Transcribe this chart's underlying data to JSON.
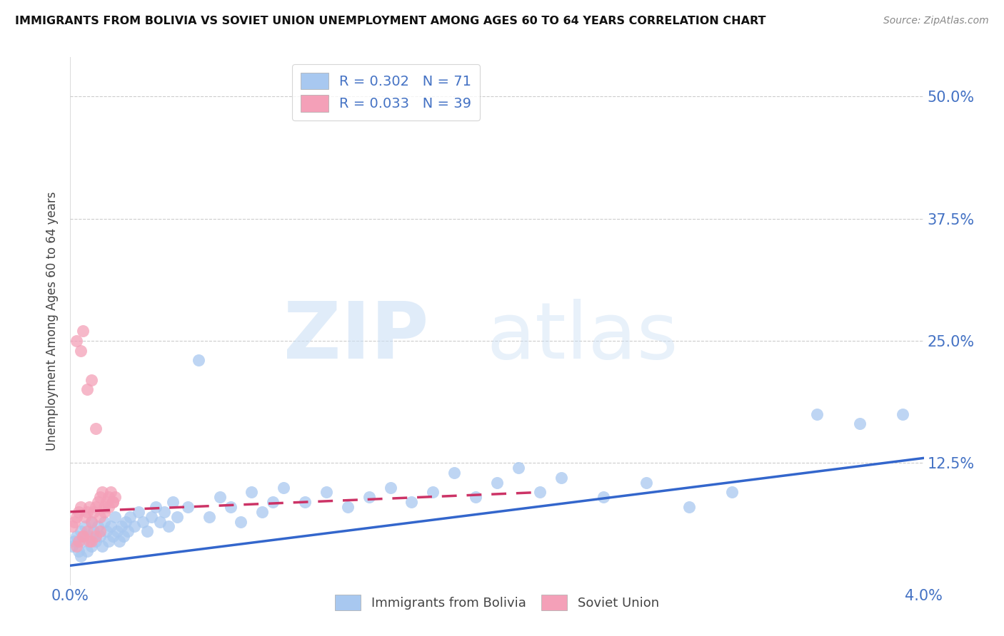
{
  "title": "IMMIGRANTS FROM BOLIVIA VS SOVIET UNION UNEMPLOYMENT AMONG AGES 60 TO 64 YEARS CORRELATION CHART",
  "source": "Source: ZipAtlas.com",
  "ylabel": "Unemployment Among Ages 60 to 64 years",
  "ytick_labels": [
    "50.0%",
    "37.5%",
    "25.0%",
    "12.5%"
  ],
  "ytick_values": [
    0.5,
    0.375,
    0.25,
    0.125
  ],
  "xlim": [
    0.0,
    0.04
  ],
  "ylim": [
    0.0,
    0.54
  ],
  "bolivia_color": "#a8c8f0",
  "soviet_color": "#f4a0b8",
  "bolivia_line_color": "#3366cc",
  "soviet_line_color": "#cc3366",
  "legend_R_bolivia": "R = 0.302",
  "legend_N_bolivia": "N = 71",
  "legend_R_soviet": "R = 0.033",
  "legend_N_soviet": "N = 39",
  "bolivia_trend_x": [
    0.0,
    0.04
  ],
  "bolivia_trend_y": [
    0.02,
    0.13
  ],
  "soviet_trend_x": [
    0.0,
    0.022
  ],
  "soviet_trend_y": [
    0.075,
    0.095
  ],
  "bolivia_x": [
    0.0001,
    0.0002,
    0.0003,
    0.0004,
    0.0005,
    0.0005,
    0.0006,
    0.0007,
    0.0008,
    0.0009,
    0.001,
    0.001,
    0.0011,
    0.0012,
    0.0013,
    0.0014,
    0.0015,
    0.0016,
    0.0017,
    0.0018,
    0.0019,
    0.002,
    0.0021,
    0.0022,
    0.0023,
    0.0024,
    0.0025,
    0.0026,
    0.0027,
    0.0028,
    0.003,
    0.0032,
    0.0034,
    0.0036,
    0.0038,
    0.004,
    0.0042,
    0.0044,
    0.0046,
    0.0048,
    0.005,
    0.0055,
    0.006,
    0.0065,
    0.007,
    0.0075,
    0.008,
    0.0085,
    0.009,
    0.0095,
    0.01,
    0.011,
    0.012,
    0.013,
    0.014,
    0.015,
    0.016,
    0.017,
    0.018,
    0.019,
    0.02,
    0.021,
    0.022,
    0.023,
    0.025,
    0.027,
    0.029,
    0.031,
    0.035,
    0.037,
    0.039
  ],
  "bolivia_y": [
    0.04,
    0.045,
    0.05,
    0.035,
    0.055,
    0.03,
    0.045,
    0.06,
    0.035,
    0.05,
    0.065,
    0.04,
    0.055,
    0.045,
    0.06,
    0.05,
    0.04,
    0.065,
    0.055,
    0.045,
    0.06,
    0.05,
    0.07,
    0.055,
    0.045,
    0.06,
    0.05,
    0.065,
    0.055,
    0.07,
    0.06,
    0.075,
    0.065,
    0.055,
    0.07,
    0.08,
    0.065,
    0.075,
    0.06,
    0.085,
    0.07,
    0.08,
    0.23,
    0.07,
    0.09,
    0.08,
    0.065,
    0.095,
    0.075,
    0.085,
    0.1,
    0.085,
    0.095,
    0.08,
    0.09,
    0.1,
    0.085,
    0.095,
    0.115,
    0.09,
    0.105,
    0.12,
    0.095,
    0.11,
    0.09,
    0.105,
    0.08,
    0.095,
    0.175,
    0.165,
    0.175
  ],
  "soviet_x": [
    0.0001,
    0.0002,
    0.0003,
    0.0003,
    0.0004,
    0.0005,
    0.0005,
    0.0006,
    0.0007,
    0.0008,
    0.0008,
    0.0009,
    0.001,
    0.001,
    0.0011,
    0.0012,
    0.0013,
    0.0014,
    0.0015,
    0.0016,
    0.0017,
    0.0018,
    0.0019,
    0.002,
    0.0021,
    0.0012,
    0.0014,
    0.0016,
    0.0018,
    0.002,
    0.0004,
    0.0006,
    0.0008,
    0.001,
    0.0012,
    0.0014,
    0.0003,
    0.0006,
    0.0009
  ],
  "soviet_y": [
    0.06,
    0.065,
    0.07,
    0.25,
    0.075,
    0.08,
    0.24,
    0.26,
    0.07,
    0.075,
    0.2,
    0.08,
    0.065,
    0.21,
    0.075,
    0.08,
    0.085,
    0.09,
    0.095,
    0.08,
    0.085,
    0.09,
    0.095,
    0.085,
    0.09,
    0.16,
    0.07,
    0.075,
    0.08,
    0.085,
    0.045,
    0.05,
    0.055,
    0.045,
    0.05,
    0.055,
    0.04,
    0.05,
    0.045
  ]
}
